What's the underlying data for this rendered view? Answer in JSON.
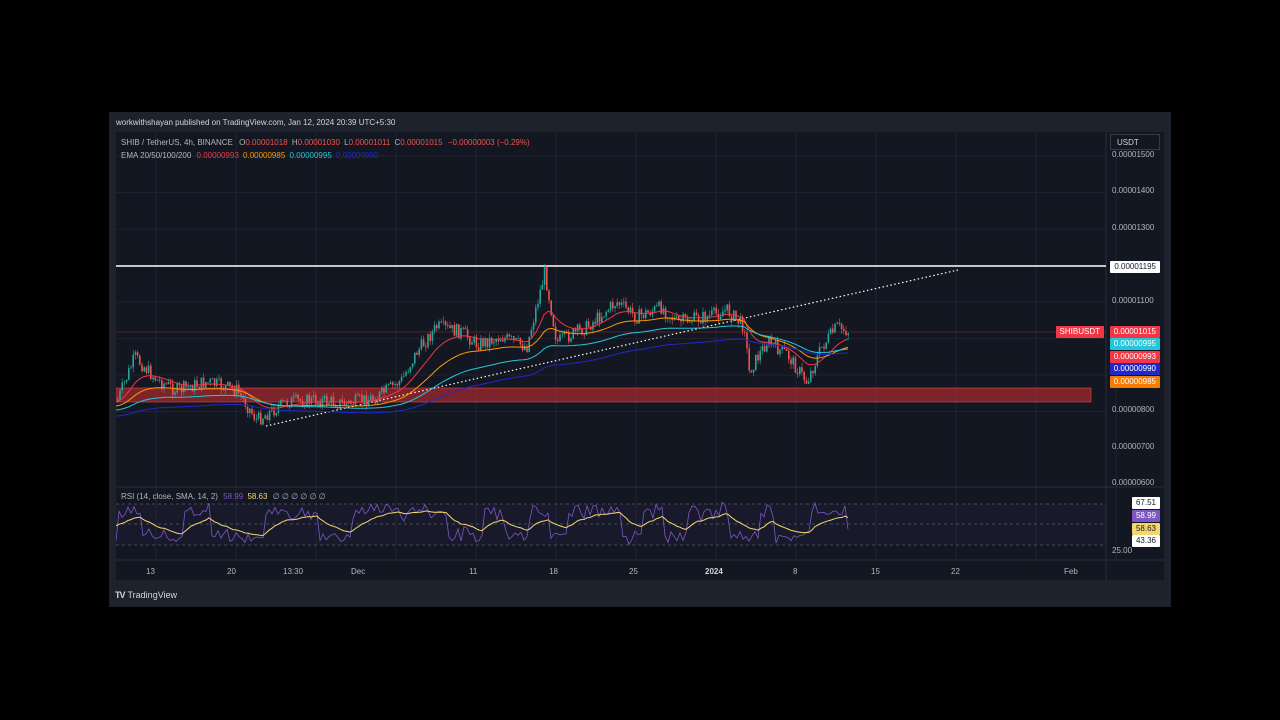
{
  "publisher": {
    "author": "workwithshayan",
    "text": "published on TradingView.com, Jan 12, 2024 20:39 UTC+5:30"
  },
  "legend": {
    "symbol": "SHIB / TetherUS, 4h, BINANCE",
    "open_label": "O",
    "open": "0.00001018",
    "high_label": "H",
    "high": "0.00001030",
    "low_label": "L",
    "low": "0.00001011",
    "close_label": "C",
    "close": "0.00001015",
    "change": "−0.00000003 (−0.29%)",
    "ema_title": "EMA 20/50/100/200",
    "ema20": "0.00000993",
    "ema50": "0.00000985",
    "ema100": "0.00000995",
    "ema200": "0.00000990"
  },
  "currency": "USDT",
  "price_axis": {
    "ticks": [
      "0.00001500",
      "0.00001400",
      "0.00001300",
      "0.00001100",
      "0.00000800",
      "0.00000700",
      "0.00000600"
    ],
    "line_label": "0.00001195",
    "symbol_tag": "SHIBUSDT",
    "last_price": "0.00001015",
    "ema_labels": [
      {
        "value": "0.00000995",
        "color": "#26c6da"
      },
      {
        "value": "0.00000993",
        "color": "#f23645"
      },
      {
        "value": "0.00000990",
        "color": "#2028c8"
      },
      {
        "value": "0.00000985",
        "color": "#f57c00"
      }
    ]
  },
  "rsi": {
    "title": "RSI (14, close, SMA, 14, 2)",
    "rsi_value": "58.99",
    "sma_value": "58.63",
    "extras": "∅ ∅ ∅ ∅ ∅ ∅",
    "labels": [
      "67.51",
      "58.99",
      "58.63",
      "43.36",
      "25.00"
    ]
  },
  "time_axis": [
    "13",
    "20",
    "13:30",
    "Dec",
    "11",
    "18",
    "25",
    "2024",
    "8",
    "15",
    "22",
    "Feb"
  ],
  "footer": {
    "brand": "TradingView"
  },
  "colors": {
    "up": "#26a69a",
    "down": "#ef5350",
    "ema20": "#f23645",
    "ema50": "#ff9800",
    "ema100": "#26c6da",
    "ema200": "#2028c8",
    "rsi": "#7e57c2",
    "rsi_sma": "#f5d76e",
    "zone": "#a12a2f"
  }
}
